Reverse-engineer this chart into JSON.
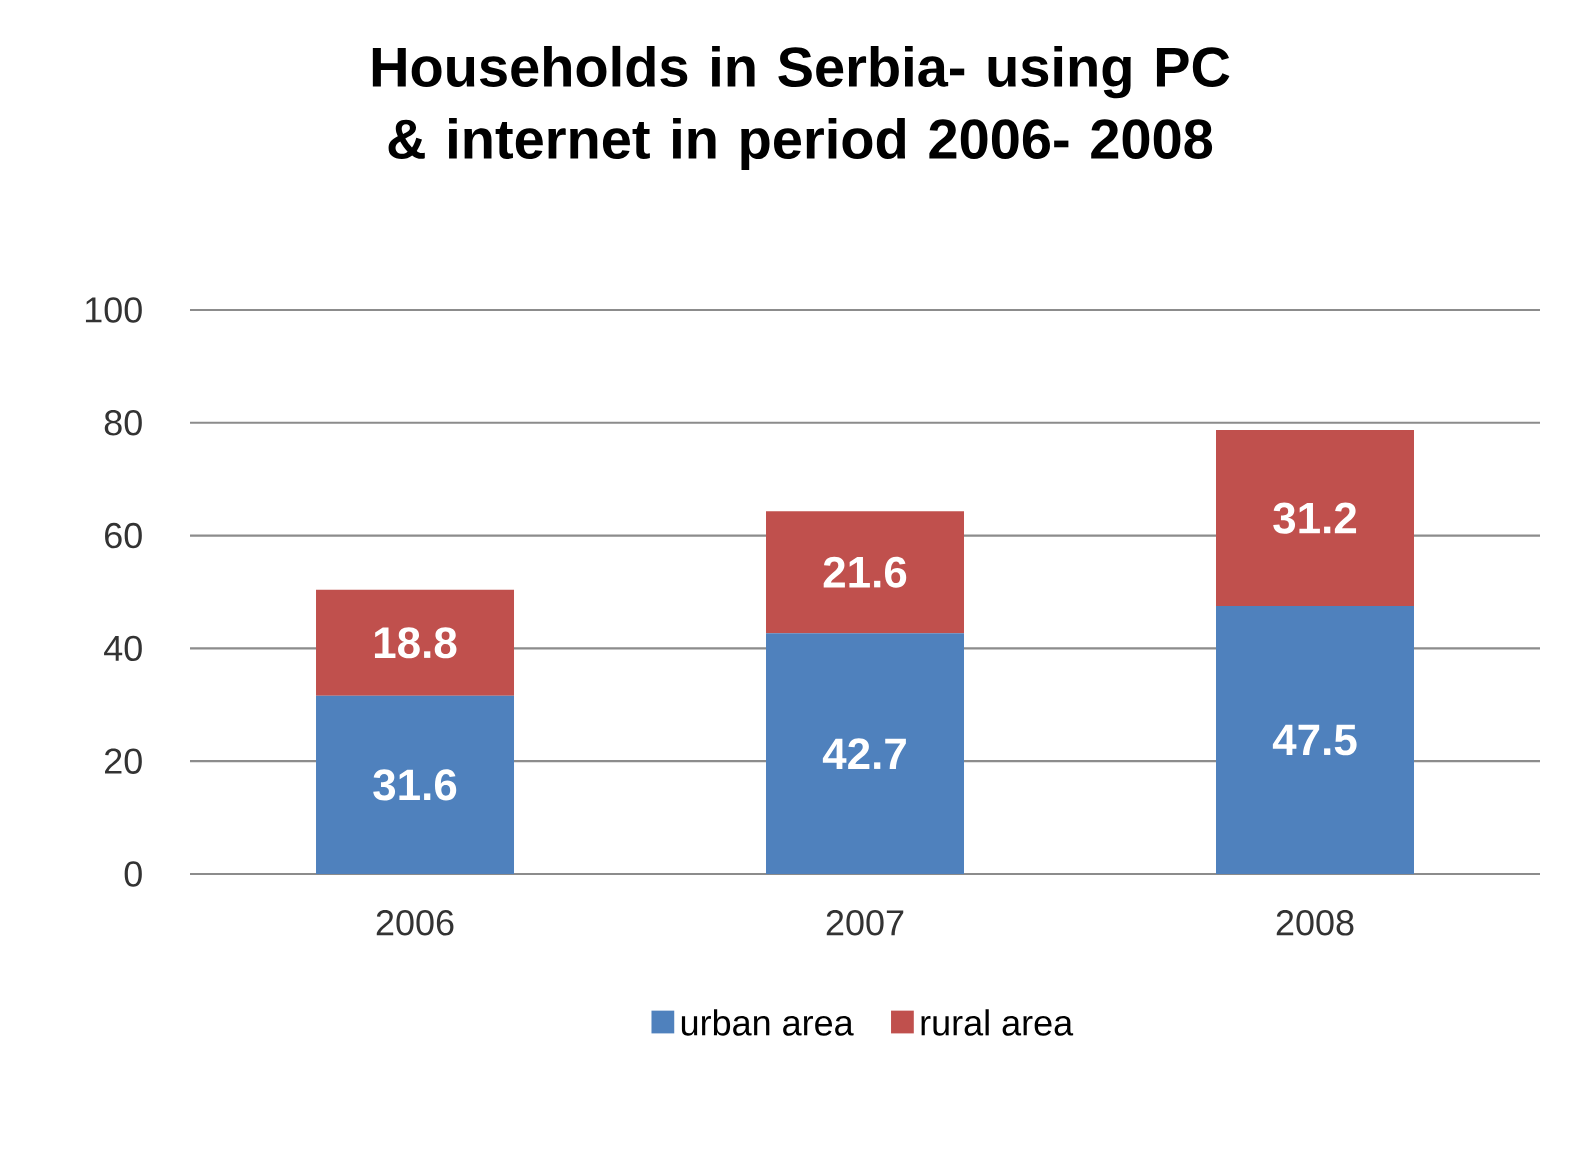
{
  "chart_data": {
    "type": "bar",
    "title": "Households in Serbia- using PC & internet in period 2006- 2008",
    "categories": [
      "2006",
      "2007",
      "2008"
    ],
    "series": [
      {
        "name": "urban area",
        "color": "#4f81bd",
        "values": [
          31.6,
          42.7,
          47.5
        ]
      },
      {
        "name": "rural area",
        "color": "#c0504d",
        "values": [
          18.8,
          21.6,
          31.2
        ]
      }
    ],
    "stacked": true,
    "data_labels": true,
    "ylim": [
      0,
      100
    ],
    "yticks": [
      0,
      20,
      40,
      60,
      80,
      100
    ],
    "grid": "y",
    "legend": "bottom"
  }
}
